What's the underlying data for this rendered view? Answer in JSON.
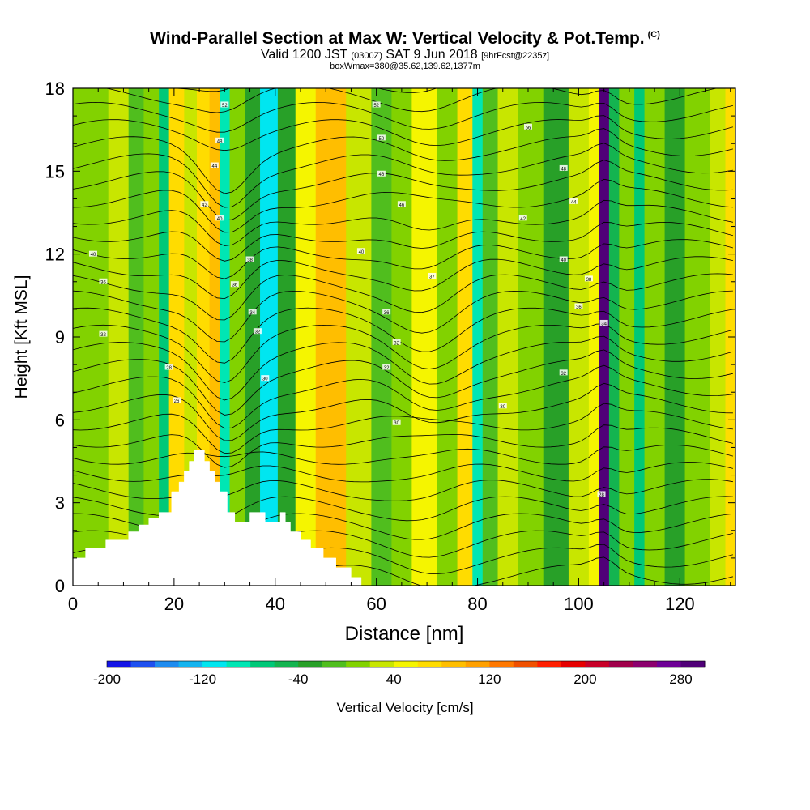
{
  "header": {
    "title": "Wind-Parallel Section at Max W: Vertical Velocity & Pot.Temp.",
    "title_mark": "(C)",
    "valid_prefix": "Valid 1200 JST",
    "valid_utc": "(0300Z)",
    "valid_date": "SAT 9 Jun 2018",
    "forecast": "[9hrFcst@2235z]",
    "box_info": "boxWmax=380@35.62,139.62,1377m"
  },
  "chart_data": {
    "type": "heatmap",
    "xlabel": "Distance [nm]",
    "ylabel": "Height [Kft MSL]",
    "xlim": [
      0,
      131
    ],
    "ylim": [
      0,
      18
    ],
    "x_ticks": [
      "0",
      "20",
      "40",
      "60",
      "80",
      "100",
      "120"
    ],
    "y_ticks": [
      "0",
      "3",
      "6",
      "9",
      "12",
      "15",
      "18"
    ],
    "colorbar": {
      "label": "Vertical Velocity [cm/s]",
      "min": -200,
      "max": 300,
      "tick_labels": [
        "-200",
        "-120",
        "-40",
        "40",
        "120",
        "200",
        "280"
      ],
      "colors": [
        "#1414e6",
        "#1e50f0",
        "#1e8cf0",
        "#14b4f0",
        "#00e6f0",
        "#00e6b4",
        "#00c878",
        "#14b450",
        "#28a028",
        "#50be1e",
        "#82d200",
        "#c8e600",
        "#f5f500",
        "#ffdc00",
        "#ffbe00",
        "#ffa000",
        "#ff7800",
        "#f05000",
        "#ff1e00",
        "#e60000",
        "#c80028",
        "#a0004b",
        "#8c006e",
        "#6e0096",
        "#500078"
      ]
    },
    "terrain": [
      [
        0,
        1.0
      ],
      [
        2.5,
        1.0
      ],
      [
        2.5,
        1.35
      ],
      [
        6.5,
        1.35
      ],
      [
        6.5,
        1.65
      ],
      [
        11,
        1.65
      ],
      [
        11,
        1.95
      ],
      [
        13,
        1.95
      ],
      [
        13,
        2.2
      ],
      [
        15,
        2.2
      ],
      [
        15,
        2.45
      ],
      [
        17,
        2.45
      ],
      [
        17,
        2.65
      ],
      [
        19.5,
        2.65
      ],
      [
        19.5,
        3.4
      ],
      [
        21,
        3.4
      ],
      [
        21,
        3.75
      ],
      [
        22,
        3.75
      ],
      [
        22,
        4.15
      ],
      [
        23,
        4.15
      ],
      [
        23,
        4.5
      ],
      [
        24,
        4.5
      ],
      [
        24,
        4.9
      ],
      [
        26,
        4.9
      ],
      [
        26,
        4.5
      ],
      [
        27,
        4.5
      ],
      [
        27,
        4.15
      ],
      [
        28,
        4.15
      ],
      [
        28,
        3.75
      ],
      [
        29,
        3.75
      ],
      [
        29,
        3.4
      ],
      [
        30.5,
        3.4
      ],
      [
        30.5,
        2.65
      ],
      [
        32,
        2.65
      ],
      [
        32,
        2.3
      ],
      [
        35,
        2.3
      ],
      [
        35,
        2.65
      ],
      [
        38,
        2.65
      ],
      [
        38,
        2.3
      ],
      [
        41,
        2.3
      ],
      [
        41,
        2.65
      ],
      [
        42,
        2.65
      ],
      [
        42,
        2.3
      ],
      [
        43,
        2.3
      ],
      [
        43,
        1.95
      ],
      [
        45,
        1.95
      ],
      [
        45,
        1.65
      ],
      [
        47,
        1.65
      ],
      [
        47,
        1.35
      ],
      [
        49.5,
        1.35
      ],
      [
        49.5,
        1.0
      ],
      [
        52,
        1.0
      ],
      [
        52,
        0.65
      ],
      [
        55,
        0.65
      ],
      [
        55,
        0.3
      ],
      [
        57,
        0.3
      ],
      [
        57,
        0
      ],
      [
        0,
        0
      ]
    ],
    "velocity_bands": [
      {
        "x": [
          0,
          4
        ],
        "value": 10
      },
      {
        "x": [
          4,
          7
        ],
        "value": 0
      },
      {
        "x": [
          7,
          11
        ],
        "value": 20
      },
      {
        "x": [
          11,
          14
        ],
        "value": -10
      },
      {
        "x": [
          14,
          17
        ],
        "value": 10
      },
      {
        "x": [
          17,
          19
        ],
        "value": -70
      },
      {
        "x": [
          19,
          22
        ],
        "value": 65
      },
      {
        "x": [
          22,
          24.5
        ],
        "value": 20
      },
      {
        "x": [
          24.5,
          27
        ],
        "value": 60
      },
      {
        "x": [
          27,
          29
        ],
        "value": 95
      },
      {
        "x": [
          29,
          31
        ],
        "value": -90
      },
      {
        "x": [
          31,
          34
        ],
        "value": 15
      },
      {
        "x": [
          34,
          37
        ],
        "value": -35
      },
      {
        "x": [
          37,
          40.5
        ],
        "value": -110
      },
      {
        "x": [
          40.5,
          44
        ],
        "value": -40
      },
      {
        "x": [
          44,
          48
        ],
        "value": 45
      },
      {
        "x": [
          48,
          54
        ],
        "value": 85
      },
      {
        "x": [
          54,
          59
        ],
        "value": 30
      },
      {
        "x": [
          59,
          63
        ],
        "value": -20
      },
      {
        "x": [
          63,
          67
        ],
        "value": 15
      },
      {
        "x": [
          67,
          72
        ],
        "value": 45
      },
      {
        "x": [
          72,
          76
        ],
        "value": 15
      },
      {
        "x": [
          76,
          79
        ],
        "value": 70
      },
      {
        "x": [
          79,
          81
        ],
        "value": -85
      },
      {
        "x": [
          81,
          84
        ],
        "value": -20
      },
      {
        "x": [
          84,
          88
        ],
        "value": 35
      },
      {
        "x": [
          88,
          93
        ],
        "value": 10
      },
      {
        "x": [
          93,
          98
        ],
        "value": -40
      },
      {
        "x": [
          98,
          102
        ],
        "value": 20
      },
      {
        "x": [
          102,
          104
        ],
        "value": 55
      },
      {
        "x": [
          104,
          106
        ],
        "value": 300
      },
      {
        "x": [
          106,
          108
        ],
        "value": -60
      },
      {
        "x": [
          108,
          111
        ],
        "value": 15
      },
      {
        "x": [
          111,
          113
        ],
        "value": -70
      },
      {
        "x": [
          113,
          117
        ],
        "value": 10
      },
      {
        "x": [
          117,
          121
        ],
        "value": -30
      },
      {
        "x": [
          121,
          126
        ],
        "value": 10
      },
      {
        "x": [
          126,
          129
        ],
        "value": 35
      },
      {
        "x": [
          129,
          131
        ],
        "value": 60
      }
    ],
    "isentrope_labels": [
      {
        "x": 4,
        "y": 12,
        "text": "40"
      },
      {
        "x": 6,
        "y": 11,
        "text": "36"
      },
      {
        "x": 6,
        "y": 9.1,
        "text": "32"
      },
      {
        "x": 19,
        "y": 7.9,
        "text": "28"
      },
      {
        "x": 20.5,
        "y": 6.7,
        "text": "26"
      },
      {
        "x": 30,
        "y": 17.4,
        "text": "52"
      },
      {
        "x": 29,
        "y": 16.1,
        "text": "48"
      },
      {
        "x": 28,
        "y": 15.2,
        "text": "44"
      },
      {
        "x": 26,
        "y": 13.8,
        "text": "42"
      },
      {
        "x": 29,
        "y": 13.3,
        "text": "40"
      },
      {
        "x": 35,
        "y": 11.8,
        "text": "38"
      },
      {
        "x": 32,
        "y": 10.9,
        "text": "36"
      },
      {
        "x": 35.5,
        "y": 9.9,
        "text": "34"
      },
      {
        "x": 36.5,
        "y": 9.2,
        "text": "32"
      },
      {
        "x": 38,
        "y": 7.5,
        "text": "30"
      },
      {
        "x": 60,
        "y": 17.4,
        "text": "52"
      },
      {
        "x": 61,
        "y": 16.2,
        "text": "50"
      },
      {
        "x": 61,
        "y": 14.9,
        "text": "46"
      },
      {
        "x": 65,
        "y": 13.8,
        "text": "46"
      },
      {
        "x": 57,
        "y": 12.1,
        "text": "40"
      },
      {
        "x": 71,
        "y": 11.2,
        "text": "37"
      },
      {
        "x": 62,
        "y": 9.9,
        "text": "36"
      },
      {
        "x": 64,
        "y": 8.8,
        "text": "32"
      },
      {
        "x": 62,
        "y": 7.9,
        "text": "32"
      },
      {
        "x": 64,
        "y": 5.9,
        "text": "30"
      },
      {
        "x": 90,
        "y": 16.6,
        "text": "56"
      },
      {
        "x": 97,
        "y": 15.1,
        "text": "48"
      },
      {
        "x": 99,
        "y": 13.9,
        "text": "44"
      },
      {
        "x": 89,
        "y": 13.3,
        "text": "42"
      },
      {
        "x": 97,
        "y": 11.8,
        "text": "40"
      },
      {
        "x": 102,
        "y": 11.1,
        "text": "38"
      },
      {
        "x": 100,
        "y": 10.1,
        "text": "36"
      },
      {
        "x": 105,
        "y": 9.5,
        "text": "34"
      },
      {
        "x": 97,
        "y": 7.7,
        "text": "32"
      },
      {
        "x": 85,
        "y": 6.5,
        "text": "30"
      },
      {
        "x": 104.5,
        "y": 3.3,
        "text": "28"
      }
    ]
  }
}
